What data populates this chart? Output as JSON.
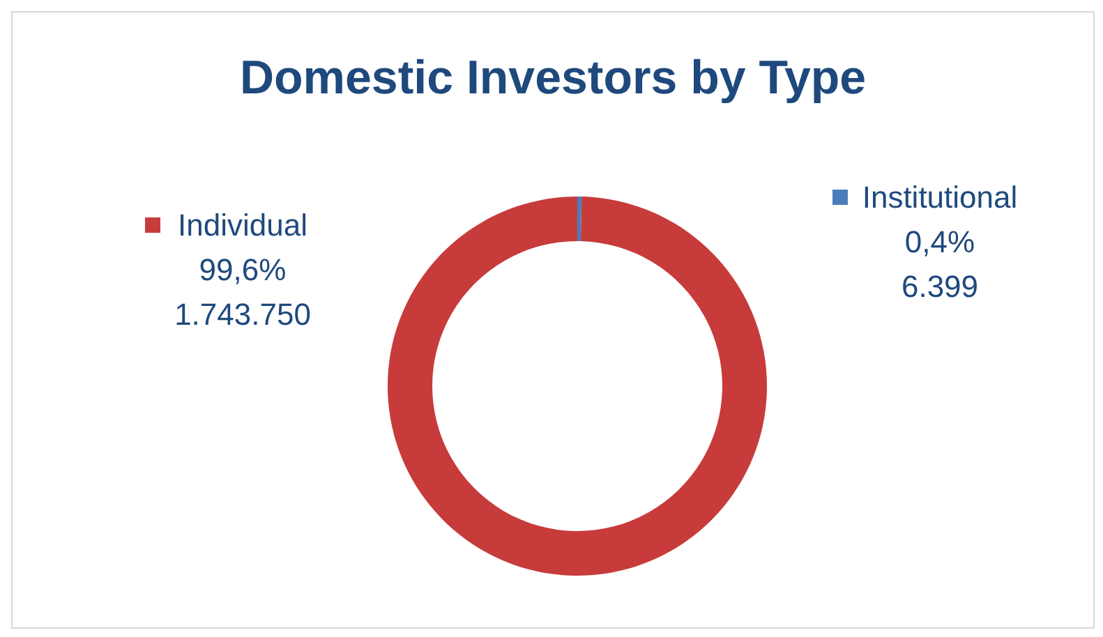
{
  "chart_data": {
    "type": "donut",
    "title": "Domestic Investors by Type",
    "categories": [
      "Individual",
      "Institutional"
    ],
    "values": [
      1743750,
      6399
    ],
    "colors": [
      "#c83b3b",
      "#4a7ebb"
    ],
    "value_labels": [
      "99,6%\n1.743.750",
      "0,4%\n6.399"
    ],
    "legend": "top"
  }
}
